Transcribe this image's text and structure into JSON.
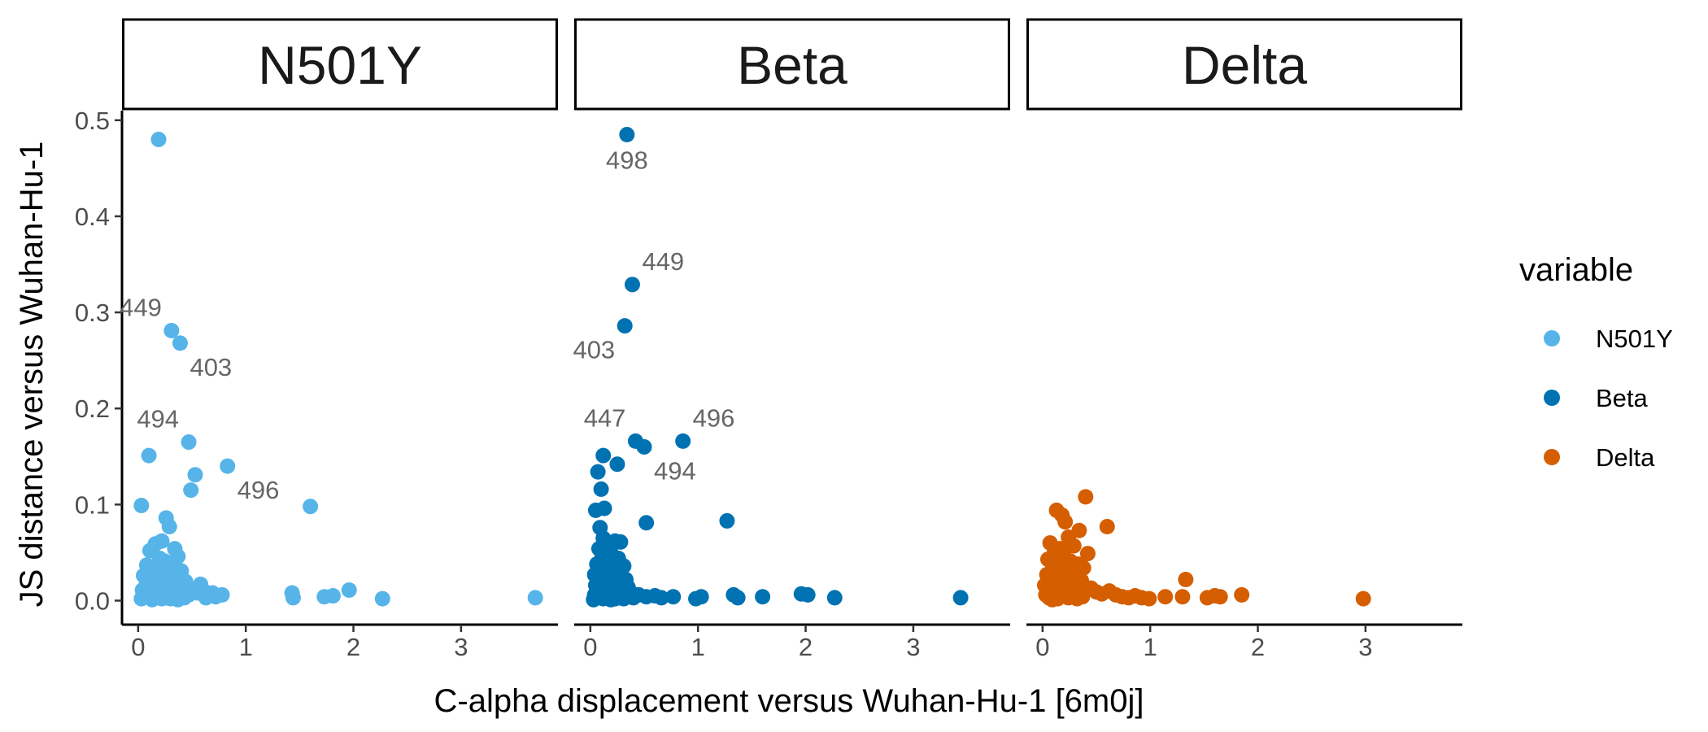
{
  "chart_data": {
    "type": "scatter",
    "xlabel": "C-alpha displacement versus Wuhan-Hu-1 [6m0j]",
    "ylabel": "JS distance versus Wuhan-Hu-1",
    "xlim": [
      -0.15,
      3.9
    ],
    "ylim": [
      -0.025,
      0.51
    ],
    "x_ticks": [
      "0",
      "1",
      "2",
      "3"
    ],
    "y_ticks": [
      "0.0",
      "0.1",
      "0.2",
      "0.3",
      "0.4",
      "0.5"
    ],
    "grid": false,
    "legend_title": "variable",
    "legend_position": "right",
    "facets": [
      {
        "name": "N501Y",
        "color": "#56B4E9",
        "points": [
          [
            0.19,
            0.48
          ],
          [
            0.31,
            0.281
          ],
          [
            0.39,
            0.268
          ],
          [
            0.47,
            0.165
          ],
          [
            0.1,
            0.151
          ],
          [
            0.83,
            0.14
          ],
          [
            0.53,
            0.131
          ],
          [
            0.49,
            0.115
          ],
          [
            0.03,
            0.099
          ],
          [
            1.6,
            0.098
          ],
          [
            0.26,
            0.086
          ],
          [
            0.29,
            0.077
          ],
          [
            0.22,
            0.062
          ],
          [
            0.16,
            0.059
          ],
          [
            0.34,
            0.054
          ],
          [
            0.11,
            0.052
          ],
          [
            0.37,
            0.046
          ],
          [
            0.2,
            0.044
          ],
          [
            0.25,
            0.041
          ],
          [
            0.08,
            0.037
          ],
          [
            0.31,
            0.036
          ],
          [
            0.14,
            0.033
          ],
          [
            0.4,
            0.031
          ],
          [
            0.27,
            0.029
          ],
          [
            0.05,
            0.026
          ],
          [
            0.18,
            0.025
          ],
          [
            0.33,
            0.024
          ],
          [
            0.22,
            0.022
          ],
          [
            0.1,
            0.021
          ],
          [
            0.44,
            0.02
          ],
          [
            0.29,
            0.019
          ],
          [
            0.15,
            0.018
          ],
          [
            0.38,
            0.017
          ],
          [
            0.24,
            0.016
          ],
          [
            0.07,
            0.015
          ],
          [
            0.46,
            0.014
          ],
          [
            0.2,
            0.014
          ],
          [
            0.35,
            0.013
          ],
          [
            0.12,
            0.012
          ],
          [
            0.27,
            0.012
          ],
          [
            0.5,
            0.011
          ],
          [
            0.04,
            0.011
          ],
          [
            0.17,
            0.01
          ],
          [
            0.31,
            0.01
          ],
          [
            0.42,
            0.009
          ],
          [
            0.09,
            0.009
          ],
          [
            0.24,
            0.008
          ],
          [
            0.55,
            0.008
          ],
          [
            0.36,
            0.007
          ],
          [
            0.14,
            0.007
          ],
          [
            0.2,
            0.006
          ],
          [
            0.47,
            0.006
          ],
          [
            0.29,
            0.005
          ],
          [
            0.06,
            0.005
          ],
          [
            0.39,
            0.004
          ],
          [
            0.11,
            0.004
          ],
          [
            0.25,
            0.004
          ],
          [
            0.33,
            0.003
          ],
          [
            0.16,
            0.003
          ],
          [
            0.43,
            0.003
          ],
          [
            0.22,
            0.002
          ],
          [
            0.03,
            0.002
          ],
          [
            0.3,
            0.002
          ],
          [
            0.13,
            0.001
          ],
          [
            0.37,
            0.001
          ],
          [
            0.56,
            0.013
          ],
          [
            0.61,
            0.01
          ],
          [
            0.66,
            0.005
          ],
          [
            0.72,
            0.004
          ],
          [
            0.78,
            0.006
          ],
          [
            0.58,
            0.017
          ],
          [
            0.63,
            0.003
          ],
          [
            0.69,
            0.008
          ],
          [
            1.43,
            0.008
          ],
          [
            1.44,
            0.003
          ],
          [
            1.73,
            0.004
          ],
          [
            1.81,
            0.005
          ],
          [
            1.96,
            0.011
          ],
          [
            2.27,
            0.002
          ],
          [
            3.69,
            0.003
          ]
        ],
        "labels": [
          {
            "text": "449",
            "x": 0.31,
            "y": 0.281,
            "position": "above-left"
          },
          {
            "text": "403",
            "x": 0.39,
            "y": 0.268,
            "position": "below-right"
          },
          {
            "text": "494",
            "x": 0.47,
            "y": 0.165,
            "position": "above-left"
          },
          {
            "text": "496",
            "x": 0.83,
            "y": 0.14,
            "position": "below-right"
          }
        ]
      },
      {
        "name": "Beta",
        "color": "#0072B2",
        "points": [
          [
            0.34,
            0.485
          ],
          [
            0.39,
            0.329
          ],
          [
            0.32,
            0.286
          ],
          [
            0.42,
            0.166
          ],
          [
            0.86,
            0.166
          ],
          [
            0.5,
            0.16
          ],
          [
            0.12,
            0.151
          ],
          [
            0.25,
            0.142
          ],
          [
            0.07,
            0.134
          ],
          [
            0.1,
            0.116
          ],
          [
            0.05,
            0.094
          ],
          [
            0.13,
            0.096
          ],
          [
            1.27,
            0.083
          ],
          [
            0.09,
            0.076
          ],
          [
            0.52,
            0.081
          ],
          [
            0.12,
            0.065
          ],
          [
            0.23,
            0.062
          ],
          [
            0.28,
            0.061
          ],
          [
            0.15,
            0.058
          ],
          [
            0.08,
            0.054
          ],
          [
            0.19,
            0.05
          ],
          [
            0.11,
            0.046
          ],
          [
            0.26,
            0.044
          ],
          [
            0.14,
            0.041
          ],
          [
            0.06,
            0.038
          ],
          [
            0.31,
            0.036
          ],
          [
            0.17,
            0.034
          ],
          [
            0.09,
            0.032
          ],
          [
            0.22,
            0.03
          ],
          [
            0.12,
            0.028
          ],
          [
            0.04,
            0.027
          ],
          [
            0.27,
            0.026
          ],
          [
            0.16,
            0.024
          ],
          [
            0.33,
            0.022
          ],
          [
            0.08,
            0.021
          ],
          [
            0.2,
            0.02
          ],
          [
            0.12,
            0.019
          ],
          [
            0.28,
            0.017
          ],
          [
            0.05,
            0.016
          ],
          [
            0.18,
            0.015
          ],
          [
            0.35,
            0.014
          ],
          [
            0.1,
            0.013
          ],
          [
            0.23,
            0.012
          ],
          [
            0.15,
            0.011
          ],
          [
            0.3,
            0.01
          ],
          [
            0.07,
            0.01
          ],
          [
            0.19,
            0.009
          ],
          [
            0.38,
            0.008
          ],
          [
            0.12,
            0.008
          ],
          [
            0.26,
            0.007
          ],
          [
            0.04,
            0.006
          ],
          [
            0.21,
            0.006
          ],
          [
            0.33,
            0.005
          ],
          [
            0.14,
            0.005
          ],
          [
            0.09,
            0.004
          ],
          [
            0.28,
            0.004
          ],
          [
            0.17,
            0.003
          ],
          [
            0.4,
            0.003
          ],
          [
            0.06,
            0.003
          ],
          [
            0.23,
            0.002
          ],
          [
            0.12,
            0.002
          ],
          [
            0.31,
            0.002
          ],
          [
            0.19,
            0.001
          ],
          [
            0.03,
            0.001
          ],
          [
            0.45,
            0.006
          ],
          [
            0.52,
            0.004
          ],
          [
            0.6,
            0.005
          ],
          [
            0.66,
            0.003
          ],
          [
            0.77,
            0.004
          ],
          [
            0.98,
            0.002
          ],
          [
            1.03,
            0.004
          ],
          [
            1.33,
            0.006
          ],
          [
            1.37,
            0.003
          ],
          [
            1.6,
            0.004
          ],
          [
            1.96,
            0.007
          ],
          [
            2.02,
            0.006
          ],
          [
            2.27,
            0.003
          ],
          [
            3.44,
            0.003
          ]
        ],
        "labels": [
          {
            "text": "498",
            "x": 0.34,
            "y": 0.485,
            "position": "below"
          },
          {
            "text": "449",
            "x": 0.39,
            "y": 0.329,
            "position": "above-right"
          },
          {
            "text": "403",
            "x": 0.32,
            "y": 0.286,
            "position": "below-left"
          },
          {
            "text": "447",
            "x": 0.42,
            "y": 0.166,
            "position": "above-left"
          },
          {
            "text": "496",
            "x": 0.86,
            "y": 0.166,
            "position": "above-right"
          },
          {
            "text": "494",
            "x": 0.5,
            "y": 0.16,
            "position": "below-right"
          }
        ]
      },
      {
        "name": "Delta",
        "color": "#D55E00",
        "points": [
          [
            0.4,
            0.108
          ],
          [
            0.13,
            0.094
          ],
          [
            0.18,
            0.089
          ],
          [
            0.21,
            0.082
          ],
          [
            0.6,
            0.077
          ],
          [
            0.34,
            0.073
          ],
          [
            0.24,
            0.066
          ],
          [
            0.07,
            0.06
          ],
          [
            0.29,
            0.057
          ],
          [
            0.16,
            0.054
          ],
          [
            0.11,
            0.05
          ],
          [
            0.42,
            0.049
          ],
          [
            0.2,
            0.046
          ],
          [
            0.05,
            0.043
          ],
          [
            0.26,
            0.041
          ],
          [
            0.33,
            0.038
          ],
          [
            0.14,
            0.036
          ],
          [
            0.38,
            0.034
          ],
          [
            0.09,
            0.032
          ],
          [
            0.22,
            0.03
          ],
          [
            0.28,
            0.028
          ],
          [
            0.04,
            0.027
          ],
          [
            0.17,
            0.026
          ],
          [
            0.31,
            0.024
          ],
          [
            0.12,
            0.022
          ],
          [
            0.36,
            0.021
          ],
          [
            0.07,
            0.02
          ],
          [
            0.25,
            0.019
          ],
          [
            0.19,
            0.017
          ],
          [
            0.02,
            0.016
          ],
          [
            0.14,
            0.015
          ],
          [
            0.3,
            0.014
          ],
          [
            0.09,
            0.013
          ],
          [
            0.23,
            0.012
          ],
          [
            0.4,
            0.011
          ],
          [
            0.05,
            0.01
          ],
          [
            0.18,
            0.01
          ],
          [
            0.27,
            0.009
          ],
          [
            0.12,
            0.008
          ],
          [
            0.34,
            0.008
          ],
          [
            0.08,
            0.007
          ],
          [
            0.21,
            0.006
          ],
          [
            0.03,
            0.006
          ],
          [
            0.16,
            0.005
          ],
          [
            0.29,
            0.005
          ],
          [
            0.11,
            0.004
          ],
          [
            0.37,
            0.004
          ],
          [
            0.06,
            0.003
          ],
          [
            0.24,
            0.003
          ],
          [
            0.14,
            0.002
          ],
          [
            0.32,
            0.002
          ],
          [
            0.09,
            0.001
          ],
          [
            0.45,
            0.013
          ],
          [
            0.5,
            0.009
          ],
          [
            0.55,
            0.007
          ],
          [
            0.62,
            0.01
          ],
          [
            0.68,
            0.006
          ],
          [
            0.74,
            0.004
          ],
          [
            0.8,
            0.003
          ],
          [
            0.86,
            0.005
          ],
          [
            0.92,
            0.003
          ],
          [
            0.99,
            0.002
          ],
          [
            1.14,
            0.004
          ],
          [
            1.33,
            0.022
          ],
          [
            1.3,
            0.004
          ],
          [
            1.53,
            0.003
          ],
          [
            1.6,
            0.005
          ],
          [
            1.65,
            0.004
          ],
          [
            1.85,
            0.006
          ],
          [
            2.98,
            0.002
          ]
        ],
        "labels": []
      }
    ]
  }
}
